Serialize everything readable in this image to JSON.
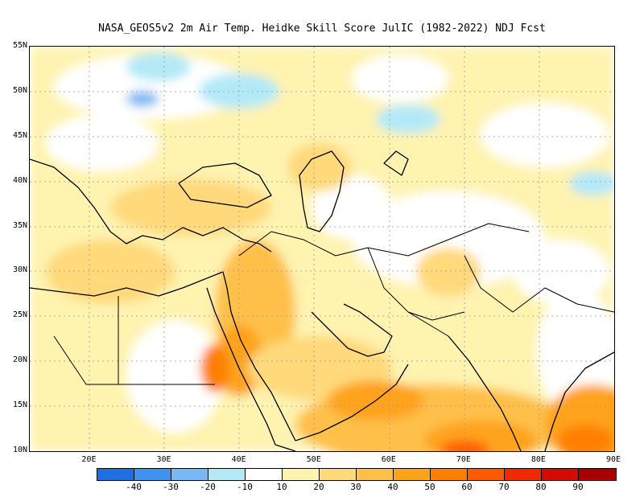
{
  "title": "NASA_GEOS5v2  2m Air Temp. Heidke Skill Score JulIC (1982-2022) NDJ Fcst",
  "map": {
    "lon_range": [
      12,
      90
    ],
    "lat_range": [
      10,
      55
    ],
    "lat_ticks": [
      "10N",
      "15N",
      "20N",
      "25N",
      "30N",
      "35N",
      "40N",
      "45N",
      "50N",
      "55N"
    ],
    "lat_values": [
      10,
      15,
      20,
      25,
      30,
      35,
      40,
      45,
      50,
      55
    ],
    "lon_ticks": [
      "20E",
      "30E",
      "40E",
      "50E",
      "60E",
      "70E",
      "80E",
      "90E"
    ],
    "lon_values": [
      20,
      30,
      40,
      50,
      60,
      70,
      80,
      90
    ],
    "grid": "dotted"
  },
  "colorbar": {
    "colors": [
      "#1e6fe0",
      "#3f93ee",
      "#7ab8f5",
      "#b3e9f7",
      "#ffffff",
      "#fff3b0",
      "#ffd97a",
      "#ffc04a",
      "#ffa31a",
      "#ff8000",
      "#ff5a00",
      "#f02a00",
      "#d10c00",
      "#a80000"
    ],
    "labels": [
      "-40",
      "-30",
      "-20",
      "-10",
      "10",
      "20",
      "30",
      "40",
      "50",
      "60",
      "70",
      "80",
      "90"
    ]
  }
}
